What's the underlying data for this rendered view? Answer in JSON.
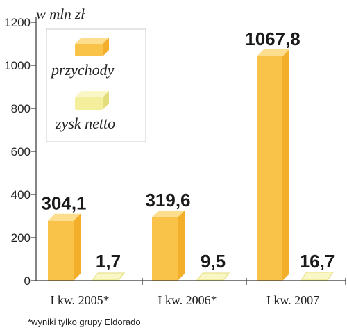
{
  "chart_data": {
    "type": "bar",
    "unit_label": "w mln zł",
    "categories": [
      "I kw. 2005*",
      "I kw. 2006*",
      "I kw. 2007"
    ],
    "series": [
      {
        "name": "przychody",
        "values": [
          304.1,
          319.6,
          1067.8
        ],
        "labels": [
          "304,1",
          "319,6",
          "1067,8"
        ]
      },
      {
        "name": "zysk netto",
        "values": [
          1.7,
          9.5,
          16.7
        ],
        "labels": [
          "1,7",
          "9,5",
          "16,7"
        ]
      }
    ],
    "ylim": [
      0,
      1200
    ],
    "yticks": [
      "0",
      "200",
      "400",
      "600",
      "800",
      "1000",
      "1200"
    ],
    "grid": false,
    "legend_position": "top-left",
    "footnote": "*wyniki tylko grupy Eldorado"
  },
  "colors": {
    "revenue_front": "#f9c349",
    "revenue_side": "#f3ae2a",
    "revenue_top": "#fdde8e",
    "profit_front": "#f3ef9c",
    "profit_side": "#e3dd7c",
    "profit_top": "#faf7c6",
    "axis": "#333333",
    "legend_border": "#cccccc"
  }
}
